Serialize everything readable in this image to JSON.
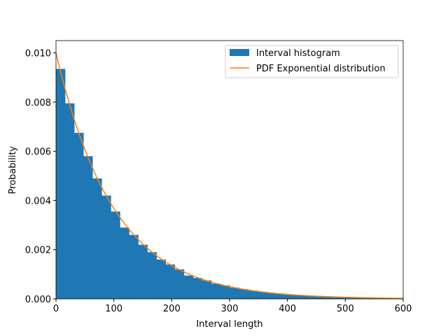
{
  "chart_data": {
    "type": "bar",
    "xlabel": "Interval length",
    "ylabel": "Probability",
    "xlim": [
      0,
      600
    ],
    "ylim": [
      0,
      0.0105
    ],
    "xticks": [
      "0",
      "100",
      "200",
      "300",
      "400",
      "500",
      "600"
    ],
    "yticks": [
      "0.000",
      "0.002",
      "0.004",
      "0.006",
      "0.008",
      "0.010"
    ],
    "grid": false,
    "legend_position": "top-right",
    "bin_width": 15.8,
    "series": [
      {
        "name": "Interval histogram",
        "kind": "histogram",
        "color": "#1f77b4",
        "values": [
          0.00935,
          0.00795,
          0.00675,
          0.0058,
          0.0049,
          0.0042,
          0.00355,
          0.0029,
          0.0026,
          0.0022,
          0.0019,
          0.0016,
          0.0014,
          0.0012,
          0.00095,
          0.00085,
          0.00075,
          0.00062,
          0.00055,
          0.00046,
          0.0004,
          0.00034,
          0.00029,
          0.00025,
          0.00021,
          0.00018,
          0.00015,
          0.00013,
          0.00011,
          9e-05,
          8e-05,
          7e-05,
          6e-05,
          5e-05,
          4e-05,
          4e-05,
          3e-05,
          3e-05
        ]
      },
      {
        "name": "PDF Exponential distribution",
        "kind": "line",
        "color": "#ff7f0e",
        "rate": 0.01
      }
    ]
  }
}
